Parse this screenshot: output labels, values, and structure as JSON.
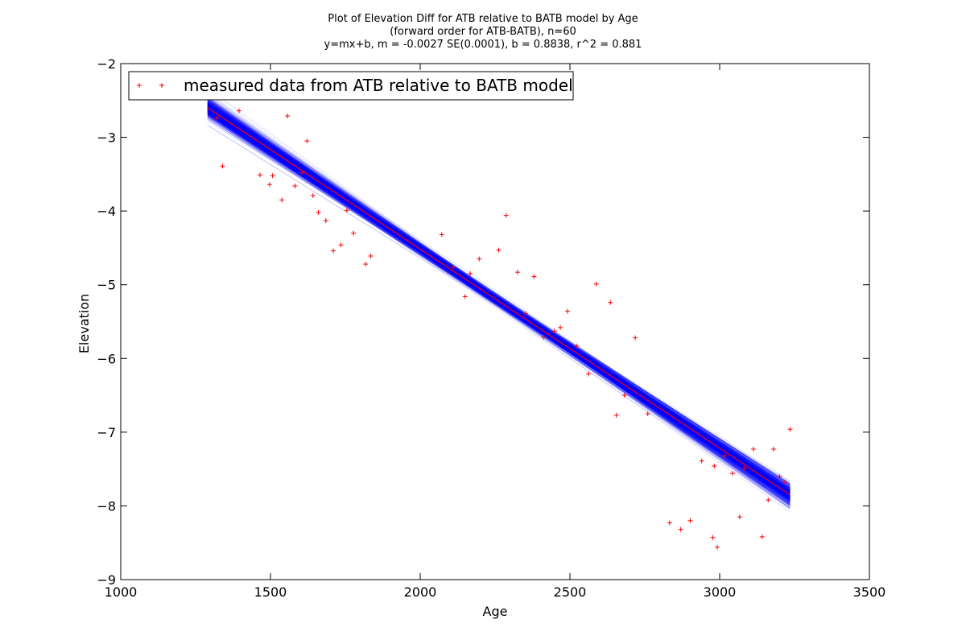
{
  "chart_data": {
    "type": "scatter",
    "title_lines": [
      "Plot of Elevation Diff for ATB relative to BATB model by Age",
      "(forward order for ATB-BATB), n=60",
      "y=mx+b, m = -0.0027 SE(0.0001), b = 0.8838, r^2 = 0.881"
    ],
    "xlabel": "Age",
    "ylabel": "Elevation",
    "xlim": [
      1000,
      3500
    ],
    "ylim": [
      -9,
      -2
    ],
    "xticks": [
      1000,
      1500,
      2000,
      2500,
      3000,
      3500
    ],
    "xtick_labels": [
      "1000",
      "1500",
      "2000",
      "2500",
      "3000",
      "3500"
    ],
    "yticks": [
      -2,
      -3,
      -4,
      -5,
      -6,
      -7,
      -8,
      -9
    ],
    "ytick_labels": [
      "−2",
      "−3",
      "−4",
      "−5",
      "−6",
      "−7",
      "−8",
      "−9"
    ],
    "legend": {
      "position": "top-left",
      "entries": [
        "measured data from ATB relative to BATB model"
      ]
    },
    "regression": {
      "m": -0.0027,
      "se_m": 0.0001,
      "b": 0.8838,
      "r2": 0.881,
      "x_range": [
        1290,
        3235
      ]
    },
    "series": [
      {
        "name": "measured data from ATB relative to BATB model",
        "marker": "+",
        "color": "#ff0000",
        "points": [
          [
            1320,
            -2.74
          ],
          [
            1340,
            -3.39
          ],
          [
            1395,
            -2.64
          ],
          [
            1465,
            -3.51
          ],
          [
            1497,
            -3.64
          ],
          [
            1507,
            -3.52
          ],
          [
            1538,
            -3.85
          ],
          [
            1557,
            -2.71
          ],
          [
            1582,
            -3.66
          ],
          [
            1605,
            -3.48
          ],
          [
            1622,
            -3.05
          ],
          [
            1642,
            -3.79
          ],
          [
            1660,
            -4.02
          ],
          [
            1685,
            -4.13
          ],
          [
            1710,
            -4.54
          ],
          [
            1735,
            -4.46
          ],
          [
            1755,
            -3.99
          ],
          [
            1777,
            -4.3
          ],
          [
            1818,
            -4.72
          ],
          [
            1835,
            -4.61
          ],
          [
            2072,
            -4.32
          ],
          [
            2110,
            -4.76
          ],
          [
            2150,
            -5.16
          ],
          [
            2167,
            -4.85
          ],
          [
            2197,
            -4.65
          ],
          [
            2262,
            -4.53
          ],
          [
            2287,
            -4.06
          ],
          [
            2325,
            -4.83
          ],
          [
            2352,
            -5.39
          ],
          [
            2380,
            -4.89
          ],
          [
            2412,
            -5.71
          ],
          [
            2448,
            -5.63
          ],
          [
            2468,
            -5.58
          ],
          [
            2492,
            -5.36
          ],
          [
            2522,
            -5.83
          ],
          [
            2562,
            -6.21
          ],
          [
            2588,
            -4.99
          ],
          [
            2635,
            -5.24
          ],
          [
            2655,
            -6.77
          ],
          [
            2682,
            -6.5
          ],
          [
            2718,
            -5.72
          ],
          [
            2760,
            -6.75
          ],
          [
            2833,
            -8.23
          ],
          [
            2870,
            -8.32
          ],
          [
            2902,
            -8.2
          ],
          [
            2940,
            -7.39
          ],
          [
            2977,
            -8.43
          ],
          [
            2992,
            -8.56
          ],
          [
            3017,
            -7.32
          ],
          [
            3043,
            -7.56
          ],
          [
            3067,
            -8.15
          ],
          [
            3083,
            -7.49
          ],
          [
            3113,
            -7.23
          ],
          [
            3142,
            -8.42
          ],
          [
            3162,
            -7.92
          ],
          [
            3180,
            -7.23
          ],
          [
            3200,
            -7.6
          ],
          [
            3235,
            -6.96
          ],
          [
            3218,
            -7.68
          ],
          [
            2982,
            -7.46
          ]
        ]
      }
    ],
    "fit_line_color": "#ff0000",
    "bootstrap_color": "#0000ff"
  }
}
